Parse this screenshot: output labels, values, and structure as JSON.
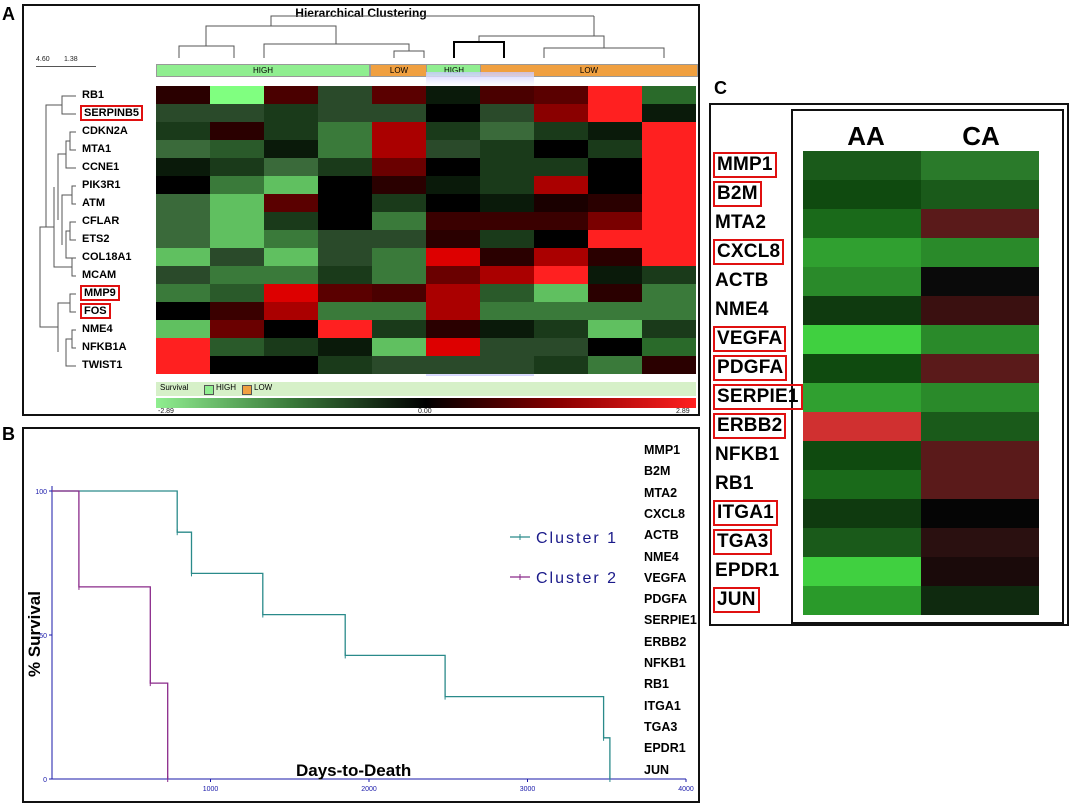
{
  "panels": {
    "a": "A",
    "b": "B",
    "c": "C"
  },
  "panelA": {
    "title": "Hierarchical Clustering",
    "scale_labels": [
      "4.60",
      "1.38"
    ],
    "column_groups": [
      {
        "label": "HIGH",
        "color": "#90ee90"
      },
      {
        "label": "LOW",
        "color": "#f0a040"
      },
      {
        "label": "HIGH",
        "color": "#90ee90"
      },
      {
        "label": "LOW",
        "color": "#f0a040"
      }
    ],
    "genes": [
      {
        "name": "RB1",
        "boxed": false
      },
      {
        "name": "SERPINB5",
        "boxed": true
      },
      {
        "name": "CDKN2A",
        "boxed": false
      },
      {
        "name": "MTA1",
        "boxed": false
      },
      {
        "name": "CCNE1",
        "boxed": false
      },
      {
        "name": "PIK3R1",
        "boxed": false
      },
      {
        "name": "ATM",
        "boxed": false
      },
      {
        "name": "CFLAR",
        "boxed": false
      },
      {
        "name": "ETS2",
        "boxed": false
      },
      {
        "name": "COL18A1",
        "boxed": false
      },
      {
        "name": "MCAM",
        "boxed": false
      },
      {
        "name": "MMP9",
        "boxed": true
      },
      {
        "name": "FOS",
        "boxed": true
      },
      {
        "name": "NME4",
        "boxed": false
      },
      {
        "name": "NFKB1A",
        "boxed": false
      },
      {
        "name": "TWIST1",
        "boxed": false
      }
    ],
    "heatmap": [
      [
        "#2a0000",
        "#80ff80",
        "#4a0000",
        "#2a4a2a",
        "#5a0000",
        "#0a1a0a",
        "#4a0000",
        "#5a0000",
        "#ff2020",
        "#2a6a2a"
      ],
      [
        "#2a4a2a",
        "#2a4a2a",
        "#1a3a1a",
        "#2a4a2a",
        "#2a4a2a",
        "#000000",
        "#2a4a2a",
        "#8a0000",
        "#ff2020",
        "#0a1a0a"
      ],
      [
        "#1a3a1a",
        "#2a0000",
        "#1a3a1a",
        "#3a7a3a",
        "#aa0000",
        "#1a3a1a",
        "#3a6a3a",
        "#1a3a1a",
        "#0a1a0a",
        "#ff2020"
      ],
      [
        "#3a6a3a",
        "#2a5a2a",
        "#0a1a0a",
        "#3a7a3a",
        "#aa0000",
        "#2a4a2a",
        "#1a3a1a",
        "#000000",
        "#1a3a1a",
        "#ff2020"
      ],
      [
        "#0a1a0a",
        "#1a3a1a",
        "#3a6a3a",
        "#1a3a1a",
        "#6a0000",
        "#000000",
        "#1a3a1a",
        "#1a3a1a",
        "#000000",
        "#ff2020"
      ],
      [
        "#000000",
        "#3a7a3a",
        "#60c060",
        "#000000",
        "#2a0000",
        "#0a1a0a",
        "#1a3a1a",
        "#aa0000",
        "#000000",
        "#ff2020"
      ],
      [
        "#3a6a3a",
        "#60c060",
        "#5a0000",
        "#000000",
        "#1a3a1a",
        "#000000",
        "#0a1a0a",
        "#1a0000",
        "#2a0000",
        "#ff2020"
      ],
      [
        "#3a6a3a",
        "#60c060",
        "#1a3a1a",
        "#000000",
        "#3a7a3a",
        "#3a0000",
        "#3a0000",
        "#3a0000",
        "#7a0000",
        "#ff2020"
      ],
      [
        "#3a6a3a",
        "#60c060",
        "#3a7a3a",
        "#2a4a2a",
        "#2a4a2a",
        "#2a0000",
        "#1a3a1a",
        "#000000",
        "#ff2020",
        "#ff2020"
      ],
      [
        "#60c060",
        "#2a4a2a",
        "#60c060",
        "#2a4a2a",
        "#3a7a3a",
        "#dd0000",
        "#2a0000",
        "#aa0000",
        "#2a0000",
        "#ff2020"
      ],
      [
        "#2a4a2a",
        "#3a7a3a",
        "#3a7a3a",
        "#1a3a1a",
        "#3a7a3a",
        "#6a0000",
        "#aa0000",
        "#ff2020",
        "#0a1a0a",
        "#1a3a1a"
      ],
      [
        "#3a7a3a",
        "#2a5a2a",
        "#dd0000",
        "#5a0000",
        "#4a0000",
        "#aa0000",
        "#2a5a2a",
        "#60c060",
        "#2a0000",
        "#3a7a3a"
      ],
      [
        "#000000",
        "#3a0000",
        "#aa0000",
        "#3a7a3a",
        "#3a7a3a",
        "#aa0000",
        "#3a7a3a",
        "#3a7a3a",
        "#3a7a3a",
        "#3a7a3a"
      ],
      [
        "#60c060",
        "#6a0000",
        "#000000",
        "#ff2020",
        "#1a3a1a",
        "#2a0000",
        "#0a1a0a",
        "#1a3a1a",
        "#60c060",
        "#1a3a1a"
      ],
      [
        "#ff2020",
        "#2a5a2a",
        "#1a3a1a",
        "#0a1a0a",
        "#60c060",
        "#dd0000",
        "#2a4a2a",
        "#2a4a2a",
        "#000000",
        "#2a6a2a"
      ],
      [
        "#ff2020",
        "#000000",
        "#000000",
        "#1a3a1a",
        "#2a4a2a",
        "#2a4a2a",
        "#2a4a2a",
        "#1a3a1a",
        "#3a7a3a",
        "#2a0000"
      ]
    ],
    "legend": {
      "label": "Survival",
      "high": "HIGH",
      "low": "LOW",
      "high_color": "#90ee90",
      "low_color": "#f0a040"
    },
    "colorbar": {
      "min": "-2.89",
      "mid": "0.00",
      "max": "2.89"
    }
  },
  "chart_data": {
    "type": "line",
    "title": "",
    "xlabel": "Days-to-Death",
    "ylabel": "% Survival",
    "xlim": [
      0,
      4000
    ],
    "ylim": [
      0,
      100
    ],
    "xticks": [
      "1000",
      "2000",
      "3000",
      "4000"
    ],
    "yticks": [
      "100",
      "50",
      "0"
    ],
    "series": [
      {
        "name": "Cluster 1",
        "color": "#2a8a8a",
        "x": [
          0,
          790,
          790,
          880,
          880,
          1330,
          1330,
          1850,
          1850,
          2480,
          2480,
          3480,
          3480,
          3520,
          3520
        ],
        "y": [
          100,
          100,
          85.7,
          85.7,
          71.4,
          71.4,
          57.1,
          57.1,
          42.9,
          42.9,
          28.6,
          28.6,
          14.3,
          14.3,
          0
        ]
      },
      {
        "name": "Cluster 2",
        "color": "#8a2a8a",
        "x": [
          0,
          170,
          170,
          620,
          620,
          730,
          730
        ],
        "y": [
          100,
          100,
          66.7,
          66.7,
          33.3,
          33.3,
          0
        ]
      }
    ]
  },
  "panelB": {
    "genes": [
      "MMP1",
      "B2M",
      "MTA2",
      "CXCL8",
      "ACTB",
      "NME4",
      "VEGFA",
      "PDGFA",
      "SERPIE1",
      "ERBB2",
      "NFKB1",
      "RB1",
      "ITGA1",
      "TGA3",
      "EPDR1",
      "JUN"
    ]
  },
  "panelC": {
    "col_headers": [
      "AA",
      "CA"
    ],
    "genes": [
      {
        "name": "MMP1",
        "boxed": true,
        "aa": "#1a5a1a",
        "ca": "#2a7a2a"
      },
      {
        "name": "B2M",
        "boxed": true,
        "aa": "#0f4a0f",
        "ca": "#1a5a1a"
      },
      {
        "name": "MTA2",
        "boxed": false,
        "aa": "#1a6a1a",
        "ca": "#5a1a1a"
      },
      {
        "name": "CXCL8",
        "boxed": true,
        "aa": "#30a030",
        "ca": "#2a8a2a"
      },
      {
        "name": "ACTB",
        "boxed": false,
        "aa": "#2a8a2a",
        "ca": "#0a0a0a"
      },
      {
        "name": "NME4",
        "boxed": false,
        "aa": "#0f3a0f",
        "ca": "#3a1010"
      },
      {
        "name": "VEGFA",
        "boxed": true,
        "aa": "#40d040",
        "ca": "#2a8a2a"
      },
      {
        "name": "PDGFA",
        "boxed": true,
        "aa": "#0f4a0f",
        "ca": "#5a1a1a"
      },
      {
        "name": "SERPIE1",
        "boxed": true,
        "aa": "#30a030",
        "ca": "#2a8a2a"
      },
      {
        "name": "ERBB2",
        "boxed": true,
        "aa": "#d03030",
        "ca": "#1a5a1a"
      },
      {
        "name": "NFKB1",
        "boxed": false,
        "aa": "#0f4a0f",
        "ca": "#5a1a1a"
      },
      {
        "name": "RB1",
        "boxed": false,
        "aa": "#1a6a1a",
        "ca": "#5a1a1a"
      },
      {
        "name": "ITGA1",
        "boxed": true,
        "aa": "#0f3a0f",
        "ca": "#050505"
      },
      {
        "name": "TGA3",
        "boxed": true,
        "aa": "#1a5a1a",
        "ca": "#2a1010"
      },
      {
        "name": "EPDR1",
        "boxed": false,
        "aa": "#40d040",
        "ca": "#1a0a0a"
      },
      {
        "name": "JUN",
        "boxed": true,
        "aa": "#2a9a2a",
        "ca": "#0f2a0f"
      }
    ]
  }
}
